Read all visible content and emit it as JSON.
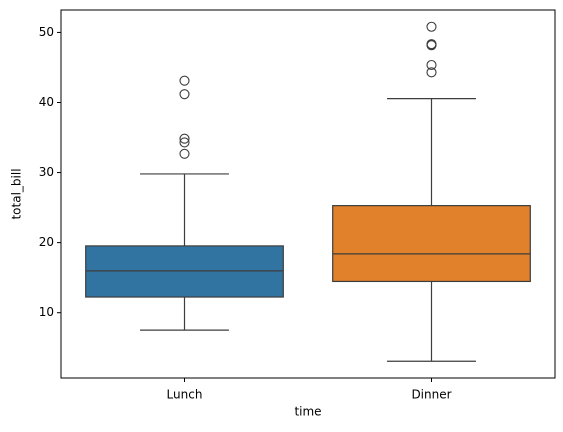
{
  "chart_data": {
    "type": "box",
    "x_label": "time",
    "y_label": "total_bill",
    "categories": [
      "Lunch",
      "Dinner"
    ],
    "boxes": [
      {
        "color": "#3274a1",
        "whislo": 7.51,
        "q1": 12.235,
        "median": 15.965,
        "q3": 19.5325,
        "whishi": 29.8,
        "fliers": [
          43.11,
          41.19,
          34.83,
          34.3,
          32.68
        ]
      },
      {
        "color": "#e1812c",
        "whislo": 3.07,
        "q1": 14.46,
        "median": 18.39,
        "q3": 25.28,
        "whishi": 40.55,
        "fliers": [
          50.81,
          48.33,
          48.27,
          48.17,
          45.35,
          44.3
        ]
      }
    ],
    "ylim": [
      0.68,
      53.2
    ],
    "yticks": [
      10,
      20,
      30,
      40,
      50
    ]
  }
}
